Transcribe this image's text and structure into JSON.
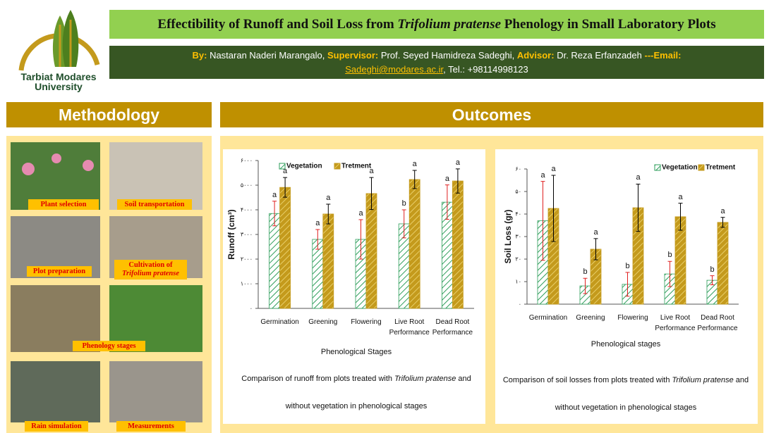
{
  "logo": {
    "name": "Tarbiat Modares University"
  },
  "header": {
    "title_before": "Effectibility of Runoff and Soil Loss from ",
    "title_species": "Trifolium pratense",
    "title_after": " Phenology in Small Laboratory Plots",
    "by_label": "By:",
    "by_text": "Nastaran Naderi Marangalo,",
    "supervisor_label": "Supervisor:",
    "supervisor_text": "Prof. Seyed Hamidreza Sadeghi,",
    "advisor_label": "Advisor:",
    "advisor_text": "Dr. Reza Erfanzadeh",
    "email_label": "---Email:",
    "email": "Sadeghi@modares.ac.ir",
    "phone": ", Tel.: +98114998123"
  },
  "methodology": {
    "heading": "Methodology",
    "captions": [
      "Plant selection",
      "Soil transportation",
      "Plot preparation",
      "Cultivation of",
      "Trifolium pratense",
      "Phenology stages",
      "Rain simulation",
      "Measurements"
    ]
  },
  "outcomes": {
    "heading": "Outcomes"
  },
  "chart_data": [
    {
      "type": "bar",
      "y_label": "Runoff (cm³)",
      "x_label": "Phenological Stages",
      "categories": [
        "Germination",
        "Greening",
        "Flowering",
        "Live Root Performance",
        "Dead Root Performance"
      ],
      "series": [
        {
          "name": "Vegetation",
          "color": "#2e9e5b",
          "error_color": "#e02020",
          "values": [
            3850,
            2800,
            2800,
            3430,
            4310
          ],
          "errors": [
            500,
            400,
            800,
            570,
            700
          ],
          "letters": [
            "a",
            "a",
            "a",
            "b",
            "a"
          ]
        },
        {
          "name": "Tretment",
          "color": "#c49a1c",
          "error_color": "#000000",
          "values": [
            4910,
            3830,
            4660,
            5230,
            5170
          ],
          "errors": [
            400,
            400,
            650,
            370,
            490
          ],
          "letters": [
            "a",
            "a",
            "a",
            "a",
            "a"
          ]
        }
      ],
      "ylim": [
        0,
        6000
      ],
      "yticks": [
        {
          "value": 0,
          "label": "۰"
        },
        {
          "value": 1000,
          "label": "۱۰۰۰"
        },
        {
          "value": 2000,
          "label": "۲۰۰۰"
        },
        {
          "value": 3000,
          "label": "۳۰۰۰"
        },
        {
          "value": 4000,
          "label": "۴۰۰۰"
        },
        {
          "value": 5000,
          "label": "۵۰۰۰"
        },
        {
          "value": 6000,
          "label": "۶۰۰۰"
        }
      ],
      "caption_before": "Comparison of runoff from plots treated with ",
      "caption_species": "Trifolium pratense",
      "caption_after": " and without vegetation in phenological stages"
    },
    {
      "type": "bar",
      "y_label": "Soil Loss (gr)",
      "x_label": "Phenological stages",
      "categories": [
        "Germination",
        "Greening",
        "Flowering",
        "Live Root Performance",
        "Dead Root Performance"
      ],
      "series": [
        {
          "name": "Vegetation",
          "color": "#2e9e5b",
          "error_color": "#e02020",
          "values": [
            37,
            8.1,
            8.8,
            13.4,
            10.6
          ],
          "errors": [
            17.5,
            3.4,
            5.3,
            5.6,
            2
          ],
          "letters": [
            "a",
            "b",
            "b",
            "b",
            "b"
          ]
        },
        {
          "name": "Tretment",
          "color": "#c49a1c",
          "error_color": "#000000",
          "values": [
            42.5,
            24.4,
            42.8,
            38.8,
            36.3
          ],
          "errors": [
            14.7,
            4.7,
            10.5,
            6,
            2.2
          ],
          "letters": [
            "a",
            "a",
            "a",
            "a",
            "a"
          ]
        }
      ],
      "ylim": [
        0,
        60
      ],
      "yticks": [
        {
          "value": 0,
          "label": "۰"
        },
        {
          "value": 10,
          "label": "۱۰"
        },
        {
          "value": 20,
          "label": "۲۰"
        },
        {
          "value": 30,
          "label": "۳۰"
        },
        {
          "value": 40,
          "label": "۴۰"
        },
        {
          "value": 50,
          "label": "۵۰"
        },
        {
          "value": 60,
          "label": "۶۰"
        }
      ],
      "caption_before": "Comparison of soil losses from plots treated with ",
      "caption_species": "Trifolium pratense",
      "caption_after": " and without vegetation in phenological stages"
    }
  ]
}
